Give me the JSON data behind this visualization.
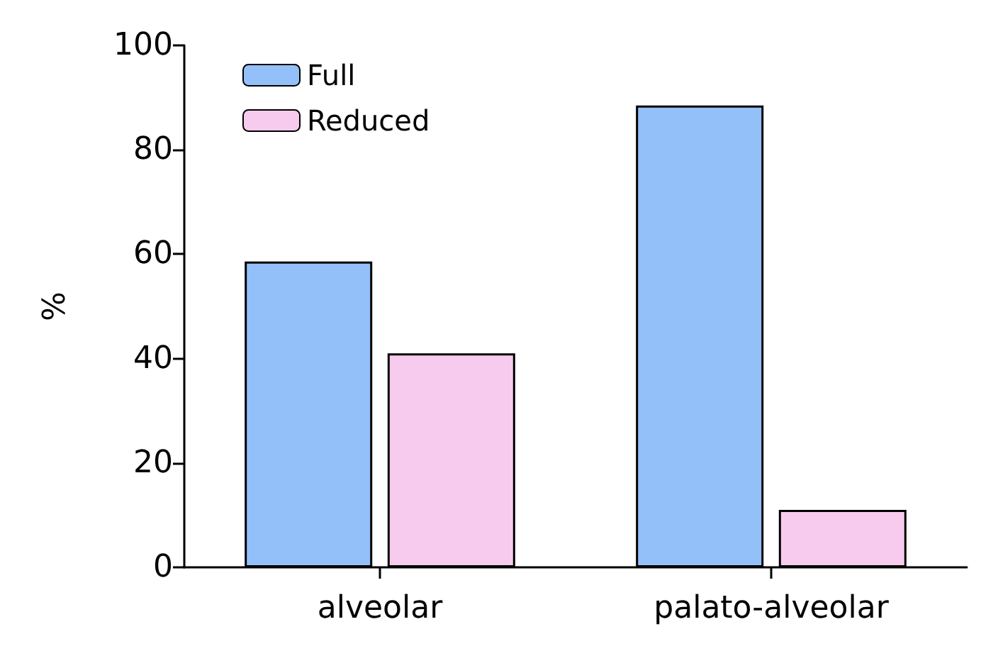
{
  "chart_data": {
    "type": "bar",
    "categories": [
      "alveolar",
      "palato-alveolar"
    ],
    "ylabel": "%",
    "ylim": [
      0,
      100
    ],
    "yticks": [
      0,
      20,
      40,
      60,
      80,
      100
    ],
    "grid": false,
    "legend": "top left",
    "series": [
      {
        "name": "Full",
        "color": "#93c0f8",
        "values": [
          58.6,
          88.5
        ]
      },
      {
        "name": "Reduced",
        "color": "#f7cbee",
        "values": [
          41,
          11
        ]
      }
    ]
  }
}
